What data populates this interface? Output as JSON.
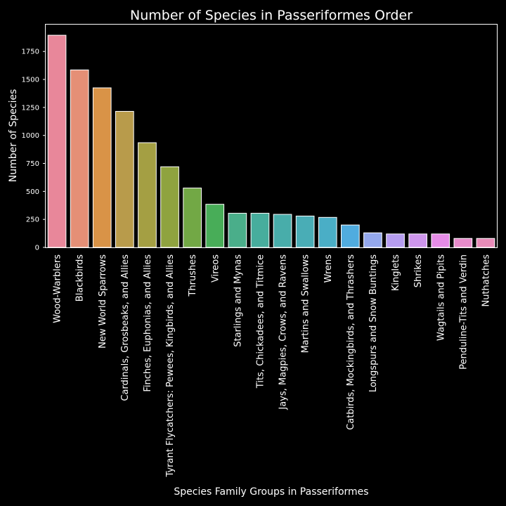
{
  "chart_data": {
    "type": "bar",
    "title": "Number of Species in Passeriformes Order",
    "xlabel": "Species Family Groups in Passeriformes",
    "ylabel": "Number of Species",
    "ylim": [
      0,
      1990
    ],
    "yticks": [
      0,
      250,
      500,
      750,
      1000,
      1250,
      1500,
      1750
    ],
    "grid": false,
    "categories": [
      "Wood-Warblers",
      "Blackbirds",
      "New World Sparrows",
      "Cardinals, Grosbeaks, and Allies",
      "Finches, Euphonias, and Allies",
      "Tyrant Flycatchers: Pewees, Kingbirds, and Allies",
      "Thrushes",
      "Vireos",
      "Starlings and Mynas",
      "Tits, Chickadees, and Titmice",
      "Jays, Magpies, Crows, and Ravens",
      "Martins and Swallows",
      "Wrens",
      "Catbirds, Mockingbirds, and Thrashers",
      "Longspurs and Snow Buntings",
      "Kinglets",
      "Shrikes",
      "Wagtails and Pipits",
      "Penduline-Tits and Verdin",
      "Nuthatches"
    ],
    "values": [
      1895,
      1585,
      1425,
      1215,
      935,
      720,
      530,
      385,
      305,
      305,
      295,
      280,
      268,
      200,
      130,
      120,
      120,
      120,
      80,
      80
    ],
    "colors": [
      "#e8879a",
      "#e58f76",
      "#d99347",
      "#b89b4b",
      "#a49f43",
      "#8fa33f",
      "#72a845",
      "#48ad58",
      "#4aae8a",
      "#47ad9d",
      "#48adaa",
      "#49adb6",
      "#4aaec6",
      "#50acdf",
      "#94a8ec",
      "#b69df0",
      "#ce96ec",
      "#e68ce7",
      "#e88bcb",
      "#e88bb8"
    ]
  }
}
